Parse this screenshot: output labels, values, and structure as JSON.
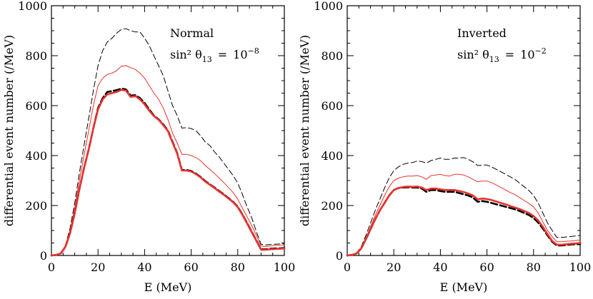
{
  "colors": {
    "axes": "#000000",
    "red": "#e8322e",
    "black": "#000000"
  },
  "chart_data": [
    {
      "type": "line",
      "xlabel": "E (MeV)",
      "ylabel": "differential event number (/MeV)",
      "xlim": [
        0,
        100
      ],
      "ylim": [
        0,
        1000
      ],
      "xticks": [
        0,
        20,
        40,
        60,
        80,
        100
      ],
      "yticks": [
        0,
        200,
        400,
        600,
        800,
        1000
      ],
      "annotation": {
        "line1": "Normal",
        "line2_prefix": "sin² θ",
        "line2_sub": "13",
        "line2_eq": "=",
        "line2_base": "10",
        "line2_exp": "−8"
      },
      "series": [
        {
          "name": "thin-black-dashed",
          "color": "#000000",
          "style": "dashed",
          "weight": "thin",
          "x": [
            0,
            2,
            4,
            6,
            8,
            10,
            12,
            14,
            16,
            18,
            20,
            22,
            24,
            26,
            28,
            30,
            32,
            34,
            36,
            38,
            40,
            42,
            44,
            46,
            48,
            50,
            52,
            54,
            56,
            58,
            60,
            62,
            64,
            66,
            68,
            70,
            72,
            74,
            76,
            78,
            80,
            82,
            84,
            86,
            88,
            90,
            92,
            94,
            96,
            98,
            100
          ],
          "y": [
            0,
            2,
            10,
            40,
            110,
            210,
            330,
            440,
            550,
            660,
            760,
            820,
            855,
            870,
            890,
            905,
            908,
            900,
            895,
            895,
            870,
            840,
            800,
            760,
            720,
            660,
            600,
            560,
            510,
            512,
            508,
            500,
            480,
            455,
            440,
            415,
            395,
            370,
            345,
            320,
            290,
            245,
            195,
            150,
            95,
            45,
            42,
            44,
            45,
            46,
            47
          ]
        },
        {
          "name": "thin-red",
          "color": "#e8322e",
          "style": "solid",
          "weight": "thin",
          "x": [
            0,
            2,
            4,
            6,
            8,
            10,
            12,
            14,
            16,
            18,
            20,
            22,
            24,
            26,
            28,
            30,
            32,
            34,
            36,
            38,
            40,
            42,
            44,
            46,
            48,
            50,
            52,
            54,
            56,
            58,
            60,
            62,
            64,
            66,
            68,
            70,
            72,
            74,
            76,
            78,
            80,
            82,
            84,
            86,
            88,
            90,
            92,
            94,
            96,
            98,
            100
          ],
          "y": [
            0,
            2,
            10,
            40,
            100,
            190,
            300,
            400,
            500,
            600,
            680,
            710,
            725,
            730,
            740,
            758,
            760,
            752,
            745,
            730,
            710,
            680,
            650,
            625,
            590,
            545,
            490,
            450,
            405,
            405,
            400,
            392,
            380,
            360,
            345,
            328,
            310,
            292,
            272,
            252,
            225,
            190,
            155,
            120,
            80,
            38,
            36,
            38,
            40,
            41,
            42
          ]
        },
        {
          "name": "thick-black-dashed",
          "color": "#000000",
          "style": "dashed",
          "weight": "thick",
          "x": [
            0,
            2,
            4,
            6,
            8,
            10,
            12,
            14,
            16,
            18,
            20,
            22,
            24,
            26,
            28,
            30,
            32,
            34,
            36,
            38,
            40,
            42,
            44,
            46,
            48,
            50,
            52,
            54,
            56,
            58,
            60,
            62,
            64,
            66,
            68,
            70,
            72,
            74,
            76,
            78,
            80,
            82,
            84,
            86,
            88,
            90,
            92,
            94,
            96,
            98,
            100
          ],
          "y": [
            0,
            2,
            8,
            35,
            90,
            170,
            265,
            350,
            425,
            510,
            590,
            630,
            655,
            658,
            662,
            668,
            665,
            640,
            642,
            630,
            610,
            585,
            560,
            545,
            525,
            500,
            455,
            410,
            342,
            342,
            338,
            328,
            315,
            298,
            285,
            272,
            258,
            245,
            230,
            215,
            195,
            165,
            130,
            95,
            60,
            25,
            25,
            27,
            28,
            29,
            30
          ]
        },
        {
          "name": "thick-red",
          "color": "#e8322e",
          "style": "solid",
          "weight": "thick",
          "x": [
            0,
            2,
            4,
            6,
            8,
            10,
            12,
            14,
            16,
            18,
            20,
            22,
            24,
            26,
            28,
            30,
            32,
            34,
            36,
            38,
            40,
            42,
            44,
            46,
            48,
            50,
            52,
            54,
            56,
            58,
            60,
            62,
            64,
            66,
            68,
            70,
            72,
            74,
            76,
            78,
            80,
            82,
            84,
            86,
            88,
            90,
            92,
            94,
            96,
            98,
            100
          ],
          "y": [
            0,
            2,
            8,
            35,
            90,
            170,
            265,
            350,
            425,
            510,
            585,
            625,
            645,
            650,
            655,
            663,
            660,
            635,
            638,
            625,
            605,
            580,
            558,
            543,
            522,
            498,
            452,
            408,
            340,
            340,
            336,
            326,
            313,
            296,
            283,
            270,
            256,
            243,
            228,
            213,
            193,
            163,
            128,
            93,
            58,
            23,
            23,
            25,
            26,
            27,
            28
          ]
        }
      ]
    },
    {
      "type": "line",
      "xlabel": "E (MeV)",
      "ylabel": "differential event number (/MeV)",
      "xlim": [
        0,
        100
      ],
      "ylim": [
        0,
        1000
      ],
      "xticks": [
        0,
        20,
        40,
        60,
        80,
        100
      ],
      "yticks": [
        0,
        200,
        400,
        600,
        800,
        1000
      ],
      "annotation": {
        "line1": "Inverted",
        "line2_prefix": "sin² θ",
        "line2_sub": "13",
        "line2_eq": "=",
        "line2_base": "10",
        "line2_exp": "−2"
      },
      "series": [
        {
          "name": "thin-black-dashed",
          "color": "#000000",
          "style": "dashed",
          "weight": "thin",
          "x": [
            0,
            2,
            4,
            6,
            8,
            10,
            12,
            14,
            16,
            18,
            20,
            22,
            24,
            26,
            28,
            30,
            32,
            34,
            36,
            38,
            40,
            42,
            44,
            46,
            48,
            50,
            52,
            54,
            56,
            58,
            60,
            62,
            64,
            66,
            68,
            70,
            72,
            74,
            76,
            78,
            80,
            82,
            84,
            86,
            88,
            90,
            92,
            94,
            96,
            98,
            100
          ],
          "y": [
            0,
            2,
            10,
            35,
            80,
            130,
            180,
            225,
            270,
            310,
            340,
            355,
            365,
            370,
            372,
            378,
            376,
            370,
            380,
            385,
            390,
            385,
            385,
            390,
            390,
            392,
            385,
            375,
            360,
            362,
            362,
            355,
            345,
            335,
            325,
            315,
            305,
            290,
            275,
            260,
            240,
            210,
            170,
            130,
            100,
            72,
            72,
            74,
            76,
            78,
            80
          ]
        },
        {
          "name": "thin-red",
          "color": "#e8322e",
          "style": "solid",
          "weight": "thin",
          "x": [
            0,
            2,
            4,
            6,
            8,
            10,
            12,
            14,
            16,
            18,
            20,
            22,
            24,
            26,
            28,
            30,
            32,
            34,
            36,
            38,
            40,
            42,
            44,
            46,
            48,
            50,
            52,
            54,
            56,
            58,
            60,
            62,
            64,
            66,
            68,
            70,
            72,
            74,
            76,
            78,
            80,
            82,
            84,
            86,
            88,
            90,
            92,
            94,
            96,
            98,
            100
          ],
          "y": [
            0,
            2,
            8,
            30,
            70,
            115,
            160,
            200,
            240,
            275,
            300,
            310,
            315,
            318,
            318,
            320,
            315,
            305,
            320,
            322,
            325,
            320,
            318,
            325,
            325,
            322,
            315,
            305,
            295,
            298,
            298,
            292,
            282,
            272,
            262,
            252,
            244,
            232,
            220,
            208,
            195,
            170,
            135,
            100,
            75,
            55,
            55,
            57,
            58,
            60,
            62
          ]
        },
        {
          "name": "thick-black-dashed",
          "color": "#000000",
          "style": "dashed",
          "weight": "thick",
          "x": [
            0,
            2,
            4,
            6,
            8,
            10,
            12,
            14,
            16,
            18,
            20,
            22,
            24,
            26,
            28,
            30,
            32,
            34,
            36,
            38,
            40,
            42,
            44,
            46,
            48,
            50,
            52,
            54,
            56,
            58,
            60,
            62,
            64,
            66,
            68,
            70,
            72,
            74,
            76,
            78,
            80,
            82,
            84,
            86,
            88,
            90,
            92,
            94,
            96,
            98,
            100
          ],
          "y": [
            0,
            2,
            8,
            28,
            65,
            105,
            145,
            180,
            210,
            240,
            262,
            270,
            272,
            273,
            272,
            272,
            268,
            255,
            262,
            262,
            258,
            255,
            255,
            255,
            250,
            245,
            240,
            232,
            215,
            218,
            215,
            210,
            205,
            200,
            195,
            190,
            185,
            178,
            170,
            162,
            150,
            132,
            108,
            80,
            55,
            40,
            40,
            42,
            44,
            45,
            46
          ]
        },
        {
          "name": "thick-red",
          "color": "#e8322e",
          "style": "solid",
          "weight": "thick",
          "x": [
            0,
            2,
            4,
            6,
            8,
            10,
            12,
            14,
            16,
            18,
            20,
            22,
            24,
            26,
            28,
            30,
            32,
            34,
            36,
            38,
            40,
            42,
            44,
            46,
            48,
            50,
            52,
            54,
            56,
            58,
            60,
            62,
            64,
            66,
            68,
            70,
            72,
            74,
            76,
            78,
            80,
            82,
            84,
            86,
            88,
            90,
            92,
            94,
            96,
            98,
            100
          ],
          "y": [
            0,
            2,
            8,
            28,
            65,
            105,
            145,
            180,
            210,
            240,
            262,
            270,
            274,
            276,
            275,
            276,
            272,
            262,
            268,
            268,
            265,
            262,
            262,
            262,
            258,
            254,
            248,
            240,
            225,
            228,
            226,
            222,
            216,
            210,
            205,
            198,
            192,
            186,
            178,
            170,
            158,
            140,
            115,
            85,
            58,
            43,
            43,
            45,
            47,
            48,
            50
          ]
        }
      ]
    }
  ]
}
